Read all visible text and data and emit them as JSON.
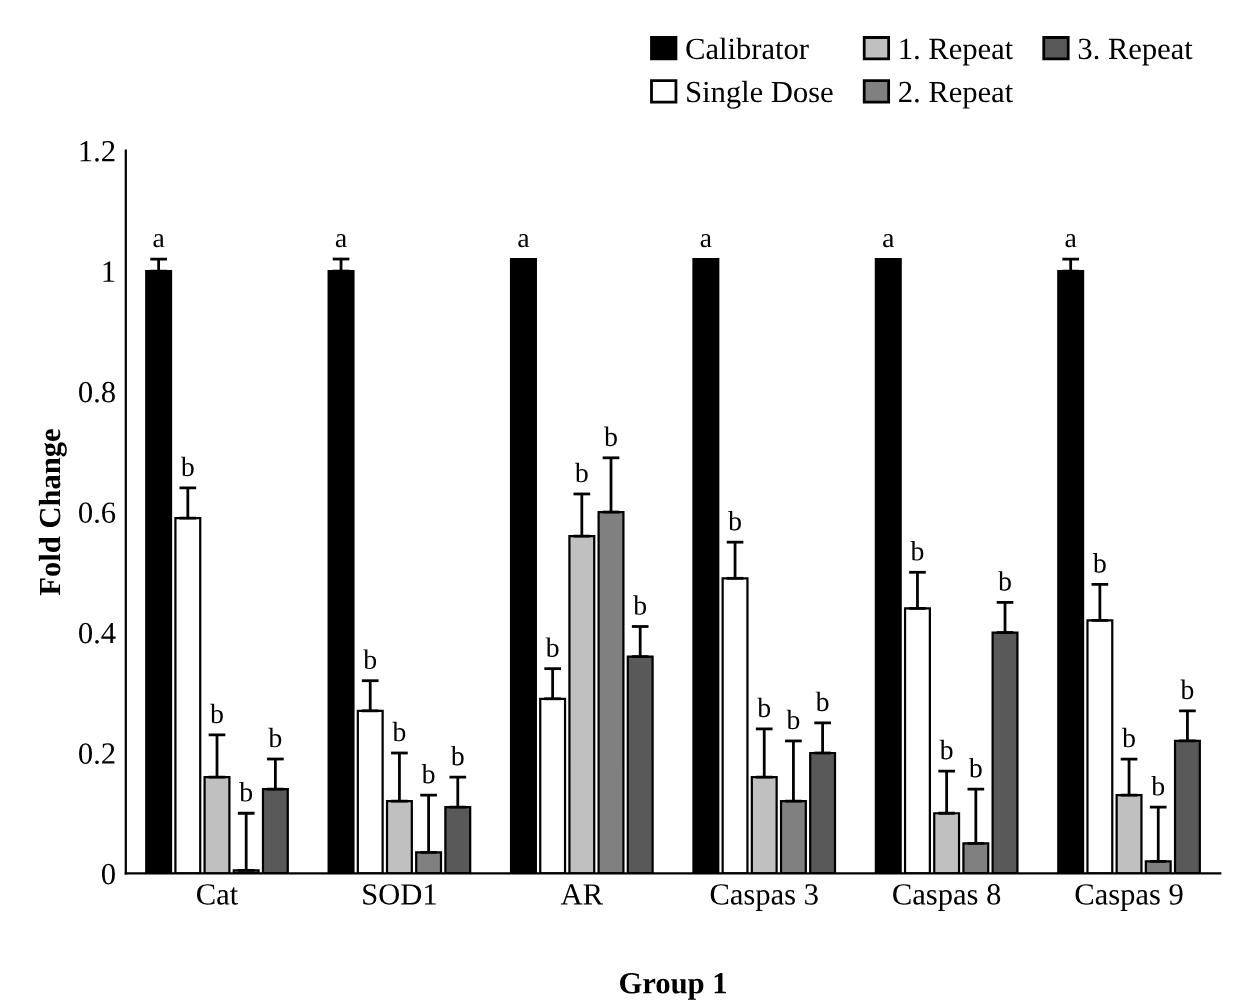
{
  "chart_data": {
    "type": "bar",
    "xlabel": "Group 1",
    "ylabel": "Fold Change",
    "categories": [
      "Cat",
      "SOD1",
      "AR",
      "Caspas 3",
      "Caspas 8",
      "Caspas 9"
    ],
    "ylim": [
      0,
      1.2
    ],
    "yticks": [
      0,
      0.2,
      0.4,
      0.6,
      0.8,
      1,
      1.2
    ],
    "grid": false,
    "legend": "top right",
    "series": [
      {
        "name": "Calibrator",
        "color": "#000000",
        "values": [
          1.0,
          1.0,
          1.02,
          1.02,
          1.02,
          1.0
        ],
        "errors": [
          [
            1.0,
            1.02
          ],
          [
            1.0,
            1.02
          ],
          null,
          null,
          null,
          [
            1.0,
            1.02
          ]
        ],
        "value_labels": [
          "a",
          "a",
          "a",
          "a",
          "a",
          "a"
        ]
      },
      {
        "name": "Single Dose",
        "color": "#ffffff",
        "values": [
          0.59,
          0.27,
          0.29,
          0.49,
          0.44,
          0.42
        ],
        "errors": [
          [
            0.59,
            0.64
          ],
          [
            0.27,
            0.32
          ],
          [
            0.29,
            0.34
          ],
          [
            0.49,
            0.55
          ],
          [
            0.44,
            0.5
          ],
          [
            0.42,
            0.48
          ]
        ],
        "value_labels": [
          "b",
          "b",
          "b",
          "b",
          "b",
          "b"
        ]
      },
      {
        "name": "1. Repeat",
        "color": "#c0c0c0",
        "values": [
          0.16,
          0.12,
          0.56,
          0.16,
          0.1,
          0.13
        ],
        "errors": [
          [
            0.16,
            0.23
          ],
          [
            0.12,
            0.2
          ],
          [
            0.56,
            0.63
          ],
          [
            0.16,
            0.24
          ],
          [
            0.1,
            0.17
          ],
          [
            0.13,
            0.19
          ]
        ],
        "value_labels": [
          "b",
          "b",
          "b",
          "b",
          "b",
          "b"
        ]
      },
      {
        "name": "2. Repeat",
        "color": "#808080",
        "values": [
          0.005,
          0.035,
          0.6,
          0.12,
          0.05,
          0.02
        ],
        "errors": [
          [
            0.005,
            0.1
          ],
          [
            0.035,
            0.13
          ],
          [
            0.6,
            0.69
          ],
          [
            0.12,
            0.22
          ],
          [
            0.05,
            0.14
          ],
          [
            0.02,
            0.11
          ]
        ],
        "value_labels": [
          "b",
          "b",
          "b",
          "b",
          "b",
          "b"
        ]
      },
      {
        "name": "3. Repeat",
        "color": "#595959",
        "values": [
          0.14,
          0.11,
          0.36,
          0.2,
          0.4,
          0.22
        ],
        "errors": [
          [
            0.14,
            0.19
          ],
          [
            0.11,
            0.16
          ],
          [
            0.36,
            0.41
          ],
          [
            0.2,
            0.25
          ],
          [
            0.4,
            0.45
          ],
          [
            0.22,
            0.27
          ]
        ],
        "value_labels": [
          "b",
          "b",
          "b",
          "b",
          "b",
          "b"
        ]
      }
    ]
  }
}
